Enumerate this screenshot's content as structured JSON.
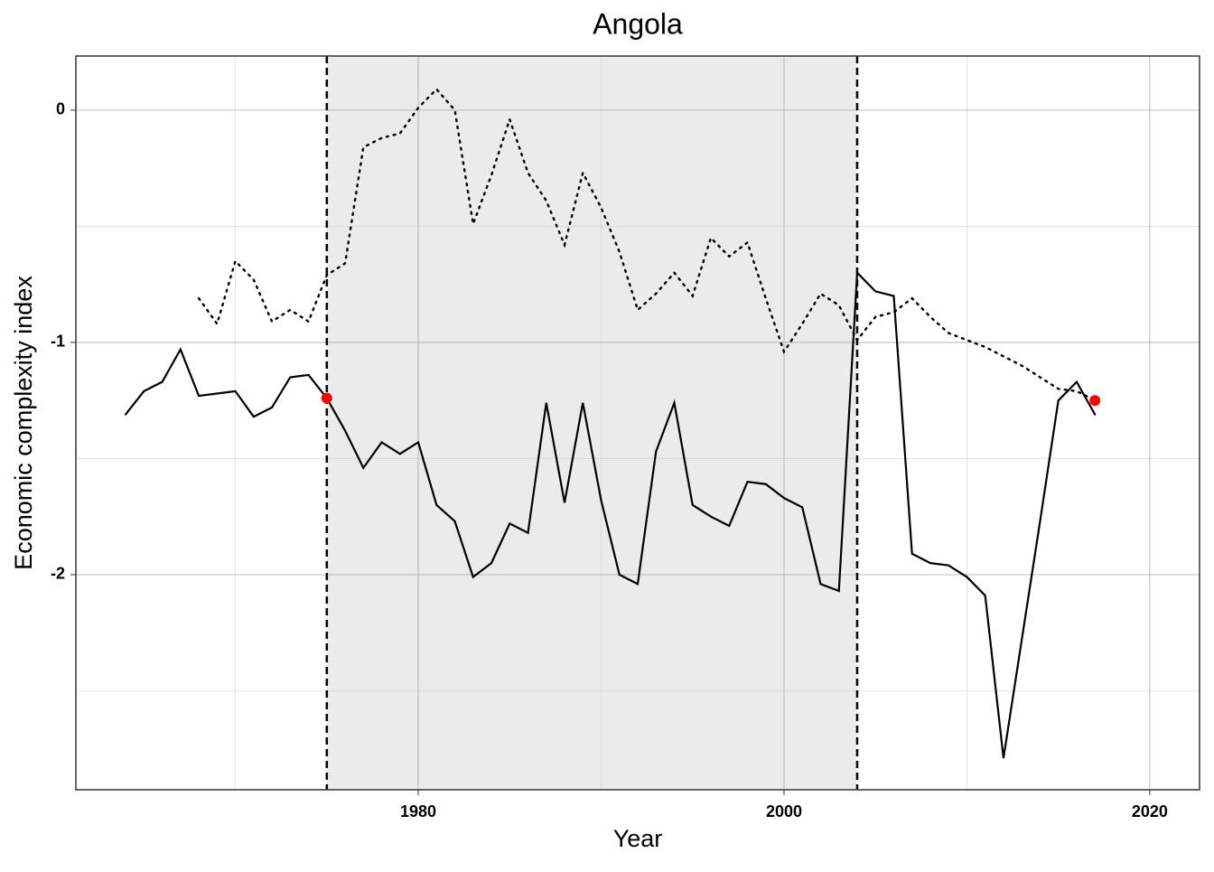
{
  "chart_data": {
    "type": "line",
    "title": "Angola",
    "x_label": "Year",
    "y_label": "Economic complexity index",
    "x": [
      1964,
      1965,
      1966,
      1967,
      1968,
      1969,
      1970,
      1971,
      1972,
      1973,
      1974,
      1975,
      1976,
      1977,
      1978,
      1979,
      1980,
      1981,
      1982,
      1983,
      1984,
      1985,
      1986,
      1987,
      1988,
      1989,
      1990,
      1991,
      1992,
      1993,
      1994,
      1995,
      1996,
      1997,
      1998,
      1999,
      2000,
      2001,
      2002,
      2003,
      2004,
      2005,
      2006,
      2007,
      2008,
      2009,
      2010,
      2011,
      2012,
      2013,
      2014,
      2015,
      2016,
      2017
    ],
    "series": [
      {
        "color": "#000000",
        "style": "solid",
        "values": [
          -1.31,
          -1.21,
          -1.17,
          -1.03,
          -1.23,
          -1.22,
          -1.21,
          -1.32,
          -1.28,
          -1.15,
          -1.14,
          -1.24,
          -1.38,
          -1.54,
          -1.43,
          -1.48,
          -1.43,
          -1.7,
          -1.77,
          -2.01,
          -1.95,
          -1.78,
          -1.82,
          -1.26,
          -1.69,
          -1.26,
          -1.68,
          -2.0,
          -2.04,
          -1.47,
          -1.26,
          -1.7,
          -1.75,
          -1.79,
          -1.6,
          -1.61,
          -1.67,
          -1.71,
          -2.04,
          -2.07,
          -0.7,
          -0.78,
          -0.8,
          -1.91,
          -1.95,
          -1.96,
          -2.01,
          -2.09,
          -2.79,
          -2.28,
          -1.77,
          -1.25,
          -1.17,
          -1.31
        ]
      },
      {
        "color": "#000000",
        "style": "dotted",
        "values": [
          null,
          null,
          null,
          null,
          -0.81,
          -0.92,
          -0.65,
          -0.73,
          -0.91,
          -0.86,
          -0.91,
          -0.71,
          -0.66,
          -0.16,
          -0.12,
          -0.1,
          0.01,
          0.09,
          0.0,
          -0.49,
          -0.28,
          -0.04,
          -0.27,
          -0.39,
          -0.58,
          -0.27,
          -0.42,
          -0.61,
          -0.86,
          -0.79,
          -0.7,
          -0.8,
          -0.55,
          -0.63,
          -0.57,
          -0.81,
          -1.04,
          -0.92,
          -0.79,
          -0.84,
          -0.99,
          -0.89,
          -0.87,
          -0.81,
          -0.89,
          -0.96,
          -0.99,
          -1.02,
          -1.06,
          -1.1,
          -1.15,
          -1.2,
          -1.21,
          -1.25
        ]
      }
    ],
    "points": {
      "color": "#ff0000",
      "x": [
        1975,
        2017
      ],
      "values": [
        -1.24,
        -1.25
      ]
    },
    "shade": {
      "color": "#ebebeb",
      "span": [
        1975,
        2004
      ]
    },
    "vlines": [
      1975,
      2004
    ],
    "xlim": [
      1961.28,
      2022.72
    ],
    "ylim": [
      -2.926,
      0.233
    ],
    "xticks": [
      1980,
      2000,
      2020
    ],
    "yticks": [
      0,
      -1,
      -2
    ],
    "xminor": [
      1970,
      1990,
      2010
    ],
    "yminor": [
      -0.5,
      -1.5,
      -2.5
    ],
    "grid": true
  }
}
